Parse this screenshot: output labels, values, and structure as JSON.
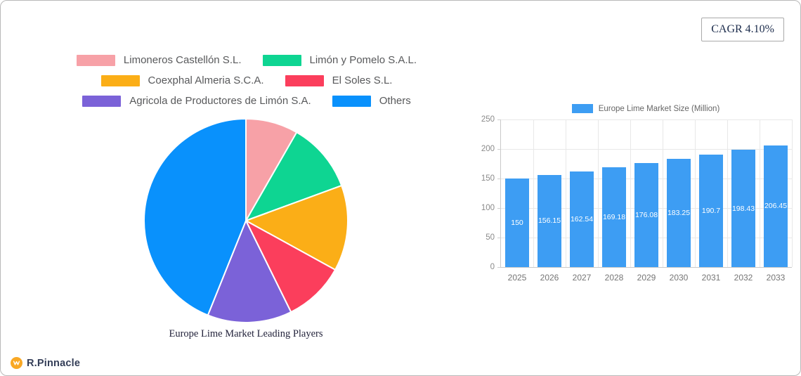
{
  "header": {
    "cagr_label": "CAGR 4.10%"
  },
  "brand": {
    "name": "R.Pinnacle",
    "icon": "pinnacle-logo-icon",
    "icon_color": "#F9A825"
  },
  "chart_data": [
    {
      "type": "pie",
      "title": "Europe Lime Market Leading Players",
      "start_angle_deg": 0,
      "direction": "clockwise",
      "slices": [
        {
          "label": "Limoneros Castellón S.L.",
          "value_percent": 8.3,
          "color": "#F7A1A7"
        },
        {
          "label": "Limón y Pomelo S.A.L.",
          "value_percent": 11.1,
          "color": "#0ED592"
        },
        {
          "label": "Coexphal Almeria S.C.A.",
          "value_percent": 13.6,
          "color": "#FBAE17"
        },
        {
          "label": "El Soles S.L.",
          "value_percent": 9.7,
          "color": "#FB3E5C"
        },
        {
          "label": "Agricola de Productores de Limón S.A.",
          "value_percent": 13.4,
          "color": "#7B62D8"
        },
        {
          "label": "Others",
          "value_percent": 43.9,
          "color": "#0991FC"
        }
      ],
      "legend_rows": [
        [
          0,
          1
        ],
        [
          2,
          3
        ],
        [
          4,
          5
        ]
      ],
      "legend_position": "top"
    },
    {
      "type": "bar",
      "legend_label": "Europe Lime Market Size (Million)",
      "categories": [
        "2025",
        "2026",
        "2027",
        "2028",
        "2029",
        "2030",
        "2031",
        "2032",
        "2033"
      ],
      "values": [
        150,
        156.15,
        162.54,
        169.18,
        176.08,
        183.25,
        190.7,
        198.43,
        206.45
      ],
      "value_labels": [
        "150",
        "156.15",
        "162.54",
        "169.18",
        "176.08",
        "183.25",
        "190.7",
        "198.43",
        "206.45"
      ],
      "bar_color": "#3D9DF3",
      "ylim": [
        0,
        250
      ],
      "y_ticks": [
        0,
        50,
        100,
        150,
        200,
        250
      ],
      "grid": true,
      "value_labels_inside_bars": true,
      "legend_position": "top"
    }
  ]
}
